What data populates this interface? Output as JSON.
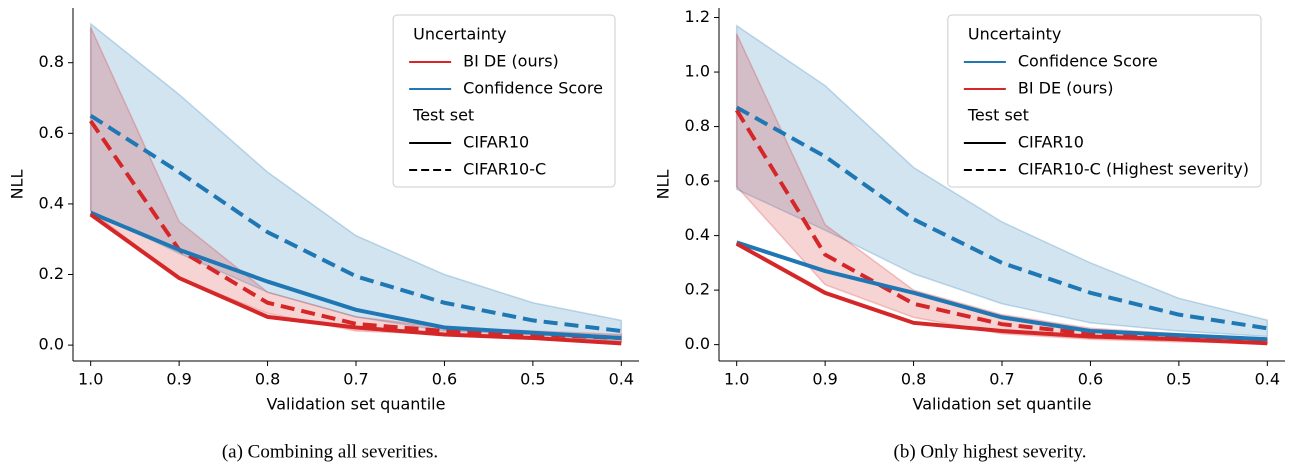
{
  "chart_data": [
    {
      "type": "line",
      "caption": "(a) Combining all severities.",
      "xlabel": "Validation set quantile",
      "ylabel": "NLL",
      "x": [
        1,
        0.9,
        0.8,
        0.7,
        0.6,
        0.5,
        0.4
      ],
      "xlim": [
        1.02,
        0.38
      ],
      "xticks": [
        {
          "value": 1,
          "label": "1.0"
        },
        0.9,
        0.8,
        0.7,
        0.6,
        0.5,
        0.4
      ],
      "ylim": [
        -0.045,
        0.955
      ],
      "yticks": [
        {
          "value": 0,
          "label": "0.0"
        },
        0.2,
        0.4,
        0.6,
        0.8
      ],
      "legend": {
        "corner": "upper right",
        "groups": [
          {
            "title": "Uncertainty",
            "entries": [
              {
                "label": "BI DE (ours)",
                "color": "#d62728"
              },
              {
                "label": "Confidence Score",
                "color": "#1f77b4"
              }
            ]
          },
          {
            "title": "Test set",
            "entries": [
              {
                "label": "CIFAR10",
                "dashed": false
              },
              {
                "label": "CIFAR10-C",
                "dashed": true
              }
            ]
          }
        ]
      },
      "series": [
        {
          "uncertainty": "Confidence Score",
          "test_set": "CIFAR10-C",
          "values": [
            0.65,
            0.49,
            0.32,
            0.195,
            0.12,
            0.07,
            0.04
          ],
          "band": {
            "lower": [
              0.38,
              0.26,
              0.15,
              0.08,
              0.04,
              0.03,
              0.01
            ],
            "upper": [
              0.91,
              0.71,
              0.49,
              0.31,
              0.2,
              0.12,
              0.07
            ]
          }
        },
        {
          "uncertainty": "BI DE (ours)",
          "test_set": "CIFAR10-C",
          "values": [
            0.635,
            0.27,
            0.12,
            0.06,
            0.04,
            0.03,
            0.02
          ],
          "band": {
            "lower": [
              0.38,
              0.19,
              0.09,
              0.04,
              0.03,
              0.02,
              0.01
            ],
            "upper": [
              0.9,
              0.35,
              0.15,
              0.08,
              0.05,
              0.04,
              0.03
            ]
          }
        },
        {
          "uncertainty": "Confidence Score",
          "test_set": "CIFAR10",
          "values": [
            0.375,
            0.27,
            0.18,
            0.1,
            0.05,
            0.035,
            0.02
          ]
        },
        {
          "uncertainty": "BI DE (ours)",
          "test_set": "CIFAR10",
          "values": [
            0.37,
            0.19,
            0.08,
            0.05,
            0.03,
            0.02,
            0.005
          ]
        }
      ]
    },
    {
      "type": "line",
      "caption": "(b) Only highest severity.",
      "xlabel": "Validation set quantile",
      "ylabel": "NLL",
      "x": [
        1,
        0.9,
        0.8,
        0.7,
        0.6,
        0.5,
        0.4
      ],
      "xlim": [
        1.02,
        0.38
      ],
      "xticks": [
        {
          "value": 1,
          "label": "1.0"
        },
        0.9,
        0.8,
        0.7,
        0.6,
        0.5,
        0.4
      ],
      "ylim": [
        -0.06,
        1.235
      ],
      "yticks": [
        {
          "value": 0,
          "label": "0.0"
        },
        0.2,
        0.4,
        0.6,
        0.8,
        {
          "value": 1,
          "label": "1.0"
        },
        1.2
      ],
      "legend": {
        "corner": "upper right",
        "groups": [
          {
            "title": "Uncertainty",
            "entries": [
              {
                "label": "Confidence Score",
                "color": "#1f77b4"
              },
              {
                "label": "BI DE (ours)",
                "color": "#d62728"
              }
            ]
          },
          {
            "title": "Test set",
            "entries": [
              {
                "label": "CIFAR10",
                "dashed": false
              },
              {
                "label": "CIFAR10-C (Highest severity)",
                "dashed": true
              }
            ]
          }
        ]
      },
      "series": [
        {
          "uncertainty": "Confidence Score",
          "test_set": "CIFAR10-C (Highest severity)",
          "values": [
            0.87,
            0.69,
            0.46,
            0.3,
            0.19,
            0.11,
            0.06
          ],
          "band": {
            "lower": [
              0.57,
              0.42,
              0.26,
              0.15,
              0.08,
              0.05,
              0.03
            ],
            "upper": [
              1.17,
              0.95,
              0.65,
              0.45,
              0.3,
              0.17,
              0.09
            ]
          }
        },
        {
          "uncertainty": "BI DE (ours)",
          "test_set": "CIFAR10-C (Highest severity)",
          "values": [
            0.86,
            0.33,
            0.15,
            0.075,
            0.04,
            0.025,
            0.015
          ],
          "band": {
            "lower": [
              0.58,
              0.22,
              0.1,
              0.04,
              0.02,
              0.01,
              0.005
            ],
            "upper": [
              1.14,
              0.44,
              0.2,
              0.11,
              0.06,
              0.04,
              0.02
            ]
          }
        },
        {
          "uncertainty": "Confidence Score",
          "test_set": "CIFAR10",
          "values": [
            0.375,
            0.27,
            0.19,
            0.1,
            0.05,
            0.035,
            0.02
          ]
        },
        {
          "uncertainty": "BI DE (ours)",
          "test_set": "CIFAR10",
          "values": [
            0.37,
            0.19,
            0.08,
            0.05,
            0.03,
            0.02,
            0.005
          ]
        }
      ]
    }
  ]
}
